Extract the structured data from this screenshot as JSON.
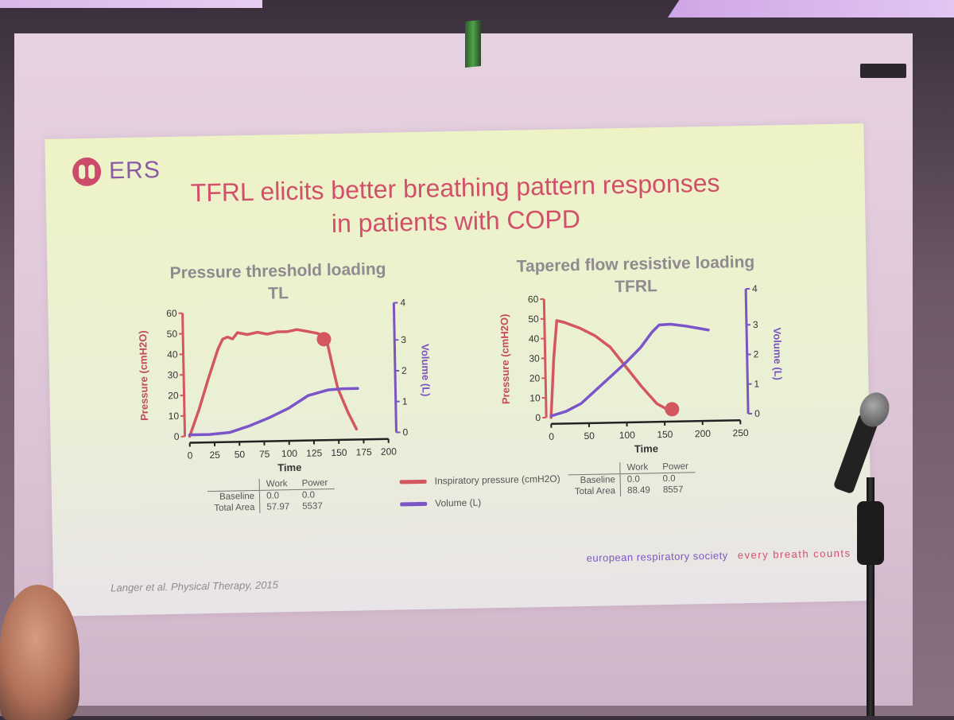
{
  "slide": {
    "logo_text": "ERS",
    "title_line1": "TFRL elicits better breathing pattern responses",
    "title_line2": "in patients with COPD",
    "legend": {
      "pressure": "Inspiratory pressure (cmH2O)",
      "volume": "Volume (L)"
    },
    "footer_society": "european respiratory society",
    "footer_slogan": "every breath counts",
    "citation": "Langer et al. Physical Therapy, 2015"
  },
  "colors": {
    "pressure": "#d4575f",
    "volume": "#7a55c8",
    "title": "#d24f6a",
    "axis": "#7a55c0"
  },
  "chart_data": [
    {
      "type": "line",
      "title": "Pressure threshold loading",
      "subtitle": "TL",
      "xlabel": "Time",
      "ylabel_left": "Pressure (cmH2O)",
      "ylabel_right": "Volume (L)",
      "xlim": [
        0,
        200
      ],
      "xticks": [
        0,
        25,
        50,
        75,
        100,
        125,
        150,
        175,
        200
      ],
      "ylim_left": [
        0,
        60
      ],
      "yticks_left": [
        0,
        10,
        20,
        30,
        40,
        50,
        60
      ],
      "ylim_right": [
        0,
        4
      ],
      "yticks_right": [
        0,
        1,
        2,
        3,
        4
      ],
      "series": [
        {
          "name": "Inspiratory pressure (cmH2O)",
          "axis": "left",
          "x": [
            0,
            10,
            20,
            30,
            35,
            40,
            45,
            50,
            60,
            70,
            80,
            90,
            100,
            110,
            120,
            130,
            135,
            140,
            145,
            150,
            160,
            168
          ],
          "y": [
            0,
            13,
            28,
            42,
            47,
            48,
            47,
            50,
            49,
            50,
            49,
            50,
            50,
            51,
            50,
            49,
            48,
            45,
            33,
            22,
            10,
            2
          ]
        },
        {
          "name": "Volume (L)",
          "axis": "right",
          "x": [
            0,
            20,
            40,
            60,
            80,
            100,
            120,
            140,
            155,
            170
          ],
          "y": [
            0.05,
            0.05,
            0.1,
            0.3,
            0.55,
            0.85,
            1.25,
            1.42,
            1.45,
            1.45
          ]
        }
      ],
      "marker": {
        "x": 137,
        "y": 46
      },
      "table": {
        "headers": [
          "Work",
          "Power"
        ],
        "rows": [
          {
            "label": "Baseline",
            "work": "0.0",
            "power": "0.0"
          },
          {
            "label": "Total Area",
            "work": "57.97",
            "power": "5537"
          }
        ]
      }
    },
    {
      "type": "line",
      "title": "Tapered flow resistive loading",
      "subtitle": "TFRL",
      "xlabel": "Time",
      "ylabel_left": "Pressure (cmH2O)",
      "ylabel_right": "Volume (L)",
      "xlim": [
        0,
        250
      ],
      "xticks": [
        0,
        50,
        100,
        150,
        200,
        250
      ],
      "ylim_left": [
        0,
        60
      ],
      "yticks_left": [
        0,
        10,
        20,
        30,
        40,
        50,
        60
      ],
      "ylim_right": [
        0,
        4
      ],
      "yticks_right": [
        0,
        1,
        2,
        3,
        4
      ],
      "series": [
        {
          "name": "Inspiratory pressure (cmH2O)",
          "axis": "left",
          "x": [
            0,
            5,
            10,
            20,
            40,
            60,
            80,
            100,
            120,
            140,
            158
          ],
          "y": [
            0,
            30,
            49,
            48,
            45,
            41,
            35,
            25,
            15,
            6,
            2
          ]
        },
        {
          "name": "Volume (L)",
          "axis": "right",
          "x": [
            0,
            20,
            40,
            60,
            80,
            100,
            120,
            135,
            145,
            160,
            180,
            200,
            210
          ],
          "y": [
            0.05,
            0.2,
            0.45,
            0.9,
            1.35,
            1.8,
            2.3,
            2.8,
            3.05,
            3.07,
            3.0,
            2.9,
            2.85
          ]
        }
      ],
      "marker": {
        "x": 160,
        "y": 3
      },
      "table": {
        "headers": [
          "Work",
          "Power"
        ],
        "rows": [
          {
            "label": "Baseline",
            "work": "0.0",
            "power": "0.0"
          },
          {
            "label": "Total Area",
            "work": "88.49",
            "power": "8557"
          }
        ]
      }
    }
  ]
}
